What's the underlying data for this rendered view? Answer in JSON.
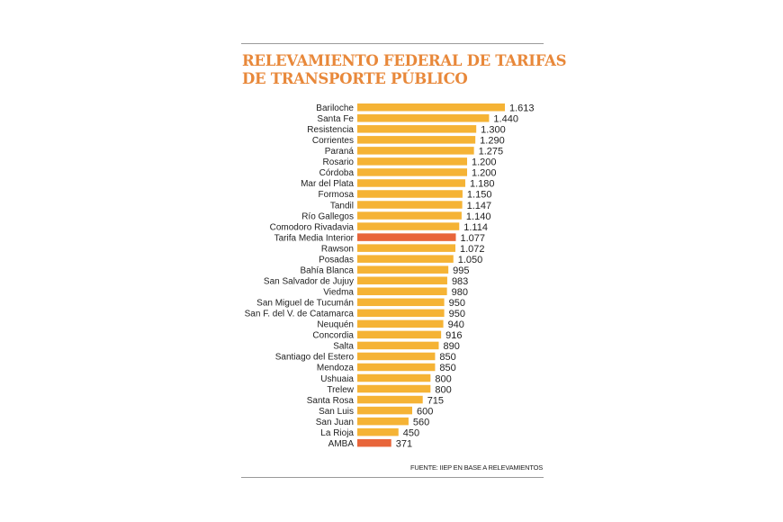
{
  "title": "RELEVAMIENTO FEDERAL DE TARIFAS\nDE TRANSPORTE PÚBLICO",
  "source": "FUENTE: IIEP EN BASE A RELEVAMIENTOS",
  "colors": {
    "bar": "#f5b335",
    "highlight": "#e8653a",
    "title": "#e8883a"
  },
  "chart_data": {
    "type": "bar",
    "orientation": "horizontal",
    "title": "RELEVAMIENTO FEDERAL DE TARIFAS DE TRANSPORTE PÚBLICO",
    "categories": [
      "Bariloche",
      "Santa Fe",
      "Resistencia",
      "Corrientes",
      "Paraná",
      "Rosario",
      "Córdoba",
      "Mar del Plata",
      "Formosa",
      "Tandil",
      "Río Gallegos",
      "Comodoro Rivadavia",
      "Tarifa Media Interior",
      "Rawson",
      "Posadas",
      "Bahía Blanca",
      "San Salvador de Jujuy",
      "Viedma",
      "San Miguel de Tucumán",
      "San F. del V. de Catamarca",
      "Neuquén",
      "Concordia",
      "Salta",
      "Santiago del Estero",
      "Mendoza",
      "Ushuaia",
      "Trelew",
      "Santa Rosa",
      "San Luis",
      "San Juan",
      "La Rioja",
      "AMBA"
    ],
    "values": [
      1613,
      1440,
      1300,
      1290,
      1275,
      1200,
      1200,
      1180,
      1150,
      1147,
      1140,
      1114,
      1077,
      1072,
      1050,
      995,
      983,
      980,
      950,
      950,
      940,
      916,
      890,
      850,
      850,
      800,
      800,
      715,
      600,
      560,
      450,
      371
    ],
    "value_labels": [
      "1.613",
      "1.440",
      "1.300",
      "1.290",
      "1.275",
      "1.200",
      "1.200",
      "1.180",
      "1.150",
      "1.147",
      "1.140",
      "1.114",
      "1.077",
      "1.072",
      "1.050",
      "995",
      "983",
      "980",
      "950",
      "950",
      "940",
      "916",
      "890",
      "850",
      "850",
      "800",
      "800",
      "715",
      "600",
      "560",
      "450",
      "371"
    ],
    "highlighted": [
      "Tarifa Media Interior",
      "AMBA"
    ],
    "grid": false,
    "legend": "none"
  }
}
